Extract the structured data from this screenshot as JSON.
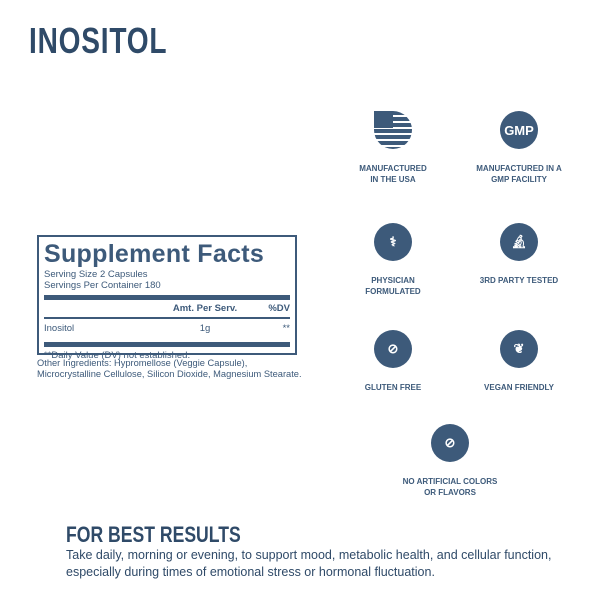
{
  "title": "INOSITOL",
  "facts": {
    "heading": "Supplement Facts",
    "serving_size": "Serving Size 2 Capsules",
    "servings": "Servings Per Container 180",
    "col_amt": "Amt. Per Serv.",
    "col_dv": "%DV",
    "rows": [
      {
        "name": "Inositol",
        "amt": "1g",
        "dv": "**"
      }
    ],
    "footnote": "**Daily Value (DV) not established."
  },
  "other_ingredients": "Other Ingredients: Hypromellose (Veggie Capsule), Microcrystalline Cellulose, Silicon Dioxide, Magnesium Stearate.",
  "badges": [
    {
      "icon": "usa-flag-icon",
      "label1": "MANUFACTURED",
      "label2": "IN THE USA"
    },
    {
      "icon": "gmp-icon",
      "text": "GMP",
      "label1": "MANUFACTURED IN A",
      "label2": "GMP FACILITY"
    },
    {
      "icon": "caduceus-icon",
      "label1": "PHYSICIAN",
      "label2": "FORMULATED"
    },
    {
      "icon": "microscope-icon",
      "label1": "3RD PARTY TESTED",
      "label2": ""
    },
    {
      "icon": "gluten-free-icon",
      "label1": "GLUTEN FREE",
      "label2": ""
    },
    {
      "icon": "leaf-icon",
      "label1": "VEGAN FRIENDLY",
      "label2": ""
    },
    {
      "icon": "no-artificial-icon",
      "label1": "NO ARTIFICIAL COLORS",
      "label2": "OR FLAVORS"
    }
  ],
  "best": {
    "heading": "FOR BEST RESULTS",
    "text": "Take daily, morning or evening, to support mood, metabolic health, and cellular function, especially during times of emotional stress or hormonal fluctuation."
  },
  "colors": {
    "primary": "#3d5a7a"
  }
}
